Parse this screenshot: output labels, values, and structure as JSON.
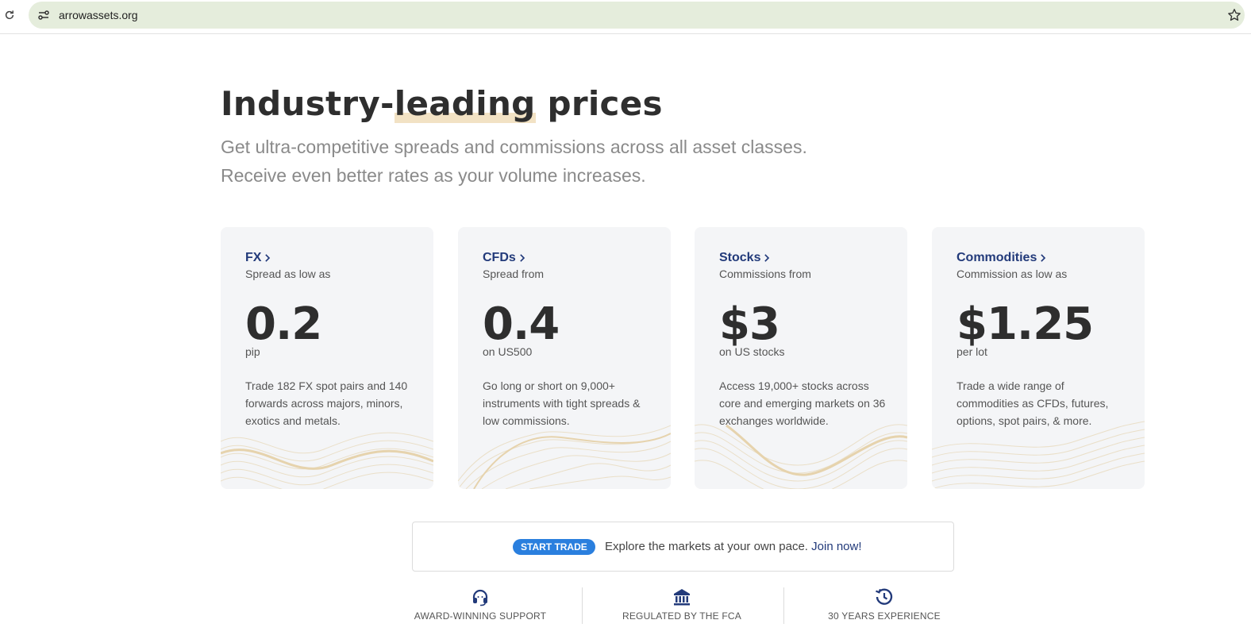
{
  "browser": {
    "url": "arrowassets.org"
  },
  "hero": {
    "title_before": "Industry-",
    "title_highlight": "leading",
    "title_after": " prices",
    "subtitle_line1": "Get ultra-competitive spreads and commissions across all asset classes.",
    "subtitle_line2": "Receive even better rates as your volume increases."
  },
  "cards": [
    {
      "link": "FX",
      "caption": "Spread as low as",
      "value": "0.2",
      "unit": "pip",
      "description": "Trade 182 FX spot pairs and 140 forwards across majors, minors, exotics and metals."
    },
    {
      "link": "CFDs",
      "caption": "Spread from",
      "value": "0.4",
      "unit": "on US500",
      "description": "Go long or short on 9,000+ instruments with tight spreads & low commissions."
    },
    {
      "link": "Stocks",
      "caption": "Commissions from",
      "value": "$3",
      "unit": "on US stocks",
      "description": "Access 19,000+ stocks across core and emerging markets on 36 exchanges worldwide."
    },
    {
      "link": "Commodities",
      "caption": "Commission as low as",
      "value": "$1.25",
      "unit": "per lot",
      "description": "Trade a wide range of commodities as CFDs, futures, options, spot pairs, & more."
    }
  ],
  "cta": {
    "button": "START TRADE",
    "text": "Explore the markets at your own pace.",
    "link": "Join now!"
  },
  "features": [
    {
      "label": "AWARD-WINNING SUPPORT",
      "icon": "headset-icon"
    },
    {
      "label": "REGULATED BY THE FCA",
      "icon": "bank-icon"
    },
    {
      "label": "30 YEARS EXPERIENCE",
      "icon": "history-icon"
    }
  ],
  "colors": {
    "accent_navy": "#223a7a",
    "cta_blue": "#2a7fde",
    "highlight": "#f2e2c4",
    "card_bg": "#f4f5f7"
  }
}
